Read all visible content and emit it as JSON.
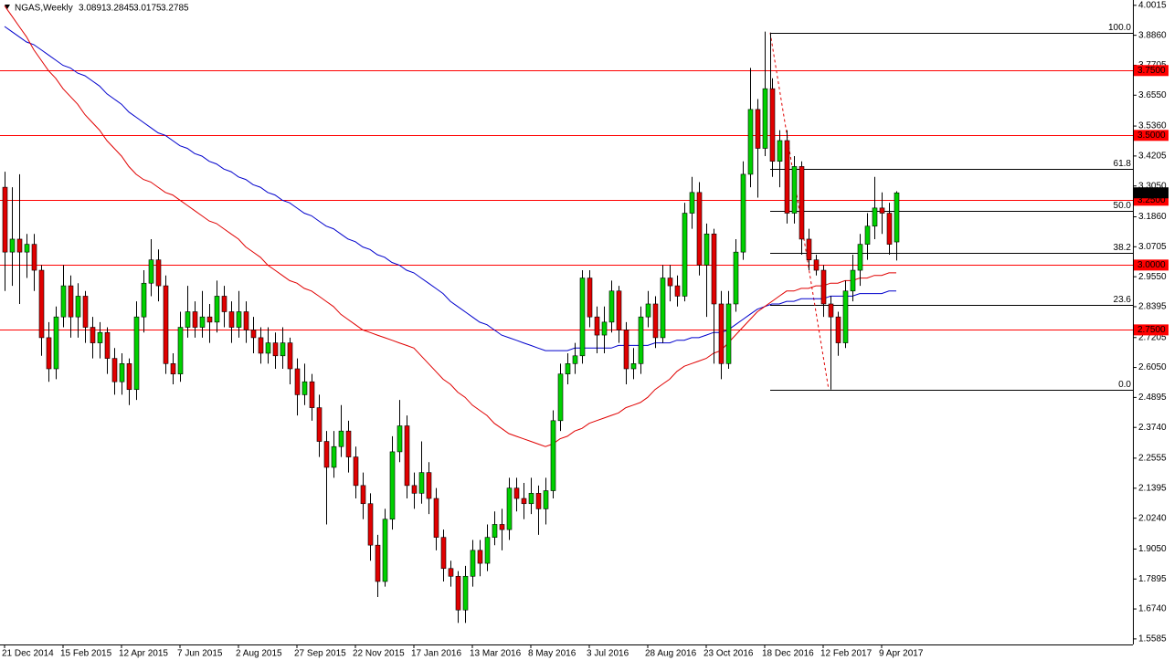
{
  "chart_data": {
    "type": "candlestick",
    "title": "NGAS,Weekly",
    "categories": [
      "21 Dec 2014",
      null,
      null,
      null,
      null,
      null,
      null,
      null,
      "15 Feb 2015",
      null,
      null,
      null,
      null,
      null,
      null,
      null,
      "12 Apr 2015",
      null,
      null,
      null,
      null,
      null,
      null,
      null,
      "7 Jun 2015",
      null,
      null,
      null,
      null,
      null,
      null,
      null,
      "2 Aug 2015",
      null,
      null,
      null,
      null,
      null,
      null,
      null,
      "27 Sep 2015",
      null,
      null,
      null,
      null,
      null,
      null,
      null,
      "22 Nov 2015",
      null,
      null,
      null,
      null,
      null,
      null,
      null,
      "17 Jan 2016",
      null,
      null,
      null,
      null,
      null,
      null,
      null,
      "13 Mar 2016",
      null,
      null,
      null,
      null,
      null,
      null,
      null,
      "8 May 2016",
      null,
      null,
      null,
      null,
      null,
      null,
      null,
      "3 Jul 2016",
      null,
      null,
      null,
      null,
      null,
      null,
      null,
      "28 Aug 2016",
      null,
      null,
      null,
      null,
      null,
      null,
      null,
      "23 Oct 2016",
      null,
      null,
      null,
      null,
      null,
      null,
      null,
      "18 Dec 2016",
      null,
      null,
      null,
      null,
      null,
      null,
      null,
      "12 Feb 2017",
      null,
      null,
      null,
      null,
      null,
      null,
      null,
      "9 Apr 2017",
      null,
      null
    ],
    "candles": [
      [
        3.3,
        3.36,
        2.9,
        3.05
      ],
      [
        3.05,
        3.3,
        2.92,
        3.1
      ],
      [
        3.1,
        3.35,
        2.85,
        3.05
      ],
      [
        3.05,
        3.12,
        2.95,
        3.08
      ],
      [
        3.08,
        3.12,
        2.9,
        2.98
      ],
      [
        2.98,
        3.0,
        2.65,
        2.72
      ],
      [
        2.72,
        2.78,
        2.55,
        2.6
      ],
      [
        2.6,
        2.84,
        2.56,
        2.8
      ],
      [
        2.8,
        3.0,
        2.76,
        2.92
      ],
      [
        2.92,
        2.96,
        2.72,
        2.8
      ],
      [
        2.8,
        2.93,
        2.72,
        2.88
      ],
      [
        2.88,
        2.9,
        2.7,
        2.76
      ],
      [
        2.76,
        2.8,
        2.64,
        2.7
      ],
      [
        2.7,
        2.78,
        2.64,
        2.74
      ],
      [
        2.74,
        2.76,
        2.58,
        2.64
      ],
      [
        2.64,
        2.68,
        2.5,
        2.55
      ],
      [
        2.55,
        2.66,
        2.5,
        2.62
      ],
      [
        2.62,
        2.64,
        2.46,
        2.52
      ],
      [
        2.52,
        2.86,
        2.48,
        2.8
      ],
      [
        2.8,
        2.98,
        2.74,
        2.93
      ],
      [
        2.93,
        3.1,
        2.88,
        3.02
      ],
      [
        3.02,
        3.06,
        2.86,
        2.92
      ],
      [
        2.92,
        2.96,
        2.58,
        2.62
      ],
      [
        2.62,
        2.66,
        2.54,
        2.58
      ],
      [
        2.58,
        2.82,
        2.55,
        2.76
      ],
      [
        2.76,
        2.92,
        2.72,
        2.82
      ],
      [
        2.82,
        2.86,
        2.72,
        2.76
      ],
      [
        2.76,
        2.9,
        2.72,
        2.8
      ],
      [
        2.8,
        2.85,
        2.7,
        2.78
      ],
      [
        2.78,
        2.94,
        2.74,
        2.88
      ],
      [
        2.88,
        2.92,
        2.76,
        2.82
      ],
      [
        2.82,
        2.86,
        2.7,
        2.76
      ],
      [
        2.76,
        2.9,
        2.72,
        2.82
      ],
      [
        2.82,
        2.86,
        2.7,
        2.75
      ],
      [
        2.75,
        2.8,
        2.66,
        2.72
      ],
      [
        2.72,
        2.76,
        2.62,
        2.66
      ],
      [
        2.66,
        2.76,
        2.62,
        2.7
      ],
      [
        2.7,
        2.74,
        2.6,
        2.65
      ],
      [
        2.65,
        2.76,
        2.6,
        2.7
      ],
      [
        2.7,
        2.72,
        2.54,
        2.6
      ],
      [
        2.6,
        2.64,
        2.42,
        2.5
      ],
      [
        2.5,
        2.62,
        2.46,
        2.55
      ],
      [
        2.55,
        2.58,
        2.4,
        2.45
      ],
      [
        2.45,
        2.5,
        2.26,
        2.32
      ],
      [
        2.32,
        2.36,
        2.0,
        2.22
      ],
      [
        2.22,
        2.36,
        2.18,
        2.3
      ],
      [
        2.3,
        2.46,
        2.26,
        2.36
      ],
      [
        2.36,
        2.4,
        2.2,
        2.26
      ],
      [
        2.26,
        2.3,
        2.1,
        2.15
      ],
      [
        2.15,
        2.2,
        2.02,
        2.08
      ],
      [
        2.08,
        2.12,
        1.86,
        1.92
      ],
      [
        1.92,
        1.96,
        1.72,
        1.78
      ],
      [
        1.78,
        2.06,
        1.76,
        2.02
      ],
      [
        2.02,
        2.34,
        1.98,
        2.28
      ],
      [
        2.28,
        2.48,
        2.24,
        2.38
      ],
      [
        2.38,
        2.42,
        2.1,
        2.15
      ],
      [
        2.15,
        2.2,
        2.06,
        2.12
      ],
      [
        2.12,
        2.32,
        2.08,
        2.2
      ],
      [
        2.2,
        2.24,
        2.04,
        2.1
      ],
      [
        2.1,
        2.14,
        1.9,
        1.95
      ],
      [
        1.95,
        1.98,
        1.78,
        1.83
      ],
      [
        1.83,
        1.86,
        1.76,
        1.8
      ],
      [
        1.8,
        1.82,
        1.62,
        1.67
      ],
      [
        1.67,
        1.84,
        1.62,
        1.8
      ],
      [
        1.8,
        1.94,
        1.76,
        1.9
      ],
      [
        1.9,
        1.94,
        1.8,
        1.85
      ],
      [
        1.85,
        2.0,
        1.82,
        1.95
      ],
      [
        1.95,
        2.05,
        1.92,
        2.0
      ],
      [
        2.0,
        2.06,
        1.9,
        1.98
      ],
      [
        1.98,
        2.18,
        1.94,
        2.14
      ],
      [
        2.14,
        2.18,
        2.05,
        2.1
      ],
      [
        2.1,
        2.16,
        2.02,
        2.08
      ],
      [
        2.08,
        2.18,
        2.04,
        2.12
      ],
      [
        2.12,
        2.15,
        1.96,
        2.06
      ],
      [
        2.06,
        2.18,
        2.0,
        2.13
      ],
      [
        2.13,
        2.44,
        2.1,
        2.4
      ],
      [
        2.4,
        2.62,
        2.36,
        2.58
      ],
      [
        2.58,
        2.66,
        2.54,
        2.62
      ],
      [
        2.62,
        2.7,
        2.58,
        2.65
      ],
      [
        2.65,
        2.98,
        2.62,
        2.95
      ],
      [
        2.95,
        2.98,
        2.76,
        2.8
      ],
      [
        2.8,
        2.84,
        2.66,
        2.73
      ],
      [
        2.73,
        2.84,
        2.66,
        2.78
      ],
      [
        2.78,
        2.94,
        2.74,
        2.9
      ],
      [
        2.9,
        2.92,
        2.7,
        2.75
      ],
      [
        2.75,
        2.78,
        2.54,
        2.6
      ],
      [
        2.6,
        2.68,
        2.56,
        2.62
      ],
      [
        2.62,
        2.84,
        2.58,
        2.8
      ],
      [
        2.8,
        2.9,
        2.76,
        2.85
      ],
      [
        2.85,
        2.88,
        2.68,
        2.72
      ],
      [
        2.72,
        3.0,
        2.7,
        2.95
      ],
      [
        2.95,
        3.0,
        2.86,
        2.92
      ],
      [
        2.92,
        2.96,
        2.84,
        2.88
      ],
      [
        2.88,
        3.24,
        2.86,
        3.2
      ],
      [
        3.2,
        3.34,
        3.14,
        3.28
      ],
      [
        3.28,
        3.32,
        2.96,
        3.0
      ],
      [
        3.0,
        3.16,
        2.8,
        3.12
      ],
      [
        3.12,
        3.14,
        2.62,
        2.85
      ],
      [
        2.85,
        2.9,
        2.56,
        2.62
      ],
      [
        2.62,
        2.9,
        2.6,
        2.85
      ],
      [
        2.85,
        3.1,
        2.82,
        3.05
      ],
      [
        3.05,
        3.4,
        3.02,
        3.35
      ],
      [
        3.35,
        3.76,
        3.3,
        3.6
      ],
      [
        3.6,
        3.64,
        3.26,
        3.45
      ],
      [
        3.45,
        3.9,
        3.42,
        3.68
      ],
      [
        3.68,
        3.72,
        3.34,
        3.4
      ],
      [
        3.4,
        3.52,
        3.3,
        3.48
      ],
      [
        3.48,
        3.52,
        3.16,
        3.2
      ],
      [
        3.2,
        3.42,
        3.16,
        3.38
      ],
      [
        3.38,
        3.4,
        3.04,
        3.1
      ],
      [
        3.1,
        3.14,
        2.98,
        3.02
      ],
      [
        3.02,
        3.04,
        2.96,
        2.98
      ],
      [
        2.98,
        3.0,
        2.8,
        2.85
      ],
      [
        2.85,
        2.88,
        2.52,
        2.8
      ],
      [
        2.8,
        2.82,
        2.65,
        2.7
      ],
      [
        2.7,
        2.94,
        2.68,
        2.9
      ],
      [
        2.9,
        3.04,
        2.86,
        2.98
      ],
      [
        2.98,
        3.12,
        2.92,
        3.08
      ],
      [
        3.08,
        3.2,
        3.02,
        3.15
      ],
      [
        3.15,
        3.34,
        3.1,
        3.22
      ],
      [
        3.22,
        3.28,
        3.12,
        3.2
      ],
      [
        3.2,
        3.24,
        3.04,
        3.08
      ],
      [
        3.0891,
        3.2845,
        3.0175,
        3.2785
      ]
    ],
    "up_color": "#00d000",
    "down_color": "#e00000",
    "series": [
      {
        "color": "#0000cc",
        "values": [
          3.92,
          3.9,
          3.88,
          3.86,
          3.85,
          3.83,
          3.81,
          3.79,
          3.77,
          3.76,
          3.74,
          3.73,
          3.71,
          3.69,
          3.66,
          3.64,
          3.62,
          3.59,
          3.57,
          3.55,
          3.53,
          3.51,
          3.5,
          3.48,
          3.46,
          3.45,
          3.43,
          3.42,
          3.4,
          3.39,
          3.37,
          3.36,
          3.34,
          3.33,
          3.31,
          3.3,
          3.28,
          3.27,
          3.25,
          3.24,
          3.22,
          3.2,
          3.19,
          3.17,
          3.15,
          3.14,
          3.12,
          3.1,
          3.09,
          3.07,
          3.06,
          3.04,
          3.03,
          3.01,
          3.0,
          2.98,
          2.97,
          2.95,
          2.93,
          2.91,
          2.89,
          2.86,
          2.84,
          2.82,
          2.8,
          2.78,
          2.77,
          2.75,
          2.73,
          2.72,
          2.71,
          2.7,
          2.69,
          2.68,
          2.67,
          2.67,
          2.67,
          2.67,
          2.68,
          2.68,
          2.68,
          2.68,
          2.68,
          2.68,
          2.69,
          2.69,
          2.69,
          2.69,
          2.69,
          2.7,
          2.7,
          2.7,
          2.71,
          2.71,
          2.72,
          2.72,
          2.73,
          2.74,
          2.74,
          2.75,
          2.77,
          2.79,
          2.81,
          2.83,
          2.84,
          2.85,
          2.85,
          2.86,
          2.86,
          2.87,
          2.87,
          2.87,
          2.87,
          2.88,
          2.88,
          2.88,
          2.88,
          2.89,
          2.89,
          2.89,
          2.89,
          2.9,
          2.9
        ]
      },
      {
        "color": "#e00000",
        "values": [
          4.0,
          3.96,
          3.92,
          3.88,
          3.83,
          3.79,
          3.75,
          3.72,
          3.68,
          3.65,
          3.62,
          3.58,
          3.55,
          3.52,
          3.48,
          3.45,
          3.42,
          3.38,
          3.35,
          3.33,
          3.32,
          3.3,
          3.28,
          3.27,
          3.25,
          3.23,
          3.21,
          3.19,
          3.17,
          3.16,
          3.14,
          3.12,
          3.1,
          3.07,
          3.05,
          3.03,
          3.0,
          2.98,
          2.96,
          2.94,
          2.93,
          2.91,
          2.9,
          2.88,
          2.86,
          2.84,
          2.81,
          2.79,
          2.77,
          2.75,
          2.74,
          2.73,
          2.72,
          2.71,
          2.7,
          2.69,
          2.68,
          2.65,
          2.62,
          2.59,
          2.56,
          2.54,
          2.51,
          2.49,
          2.46,
          2.44,
          2.42,
          2.39,
          2.37,
          2.35,
          2.34,
          2.33,
          2.32,
          2.31,
          2.3,
          2.31,
          2.33,
          2.34,
          2.36,
          2.37,
          2.39,
          2.4,
          2.41,
          2.42,
          2.43,
          2.45,
          2.46,
          2.47,
          2.49,
          2.52,
          2.54,
          2.56,
          2.59,
          2.61,
          2.62,
          2.63,
          2.64,
          2.66,
          2.67,
          2.7,
          2.73,
          2.76,
          2.79,
          2.82,
          2.84,
          2.86,
          2.88,
          2.9,
          2.9,
          2.91,
          2.91,
          2.92,
          2.92,
          2.93,
          2.93,
          2.94,
          2.94,
          2.95,
          2.95,
          2.96,
          2.96,
          2.97,
          2.97
        ]
      }
    ],
    "levels": [
      {
        "value": 3.75,
        "label": "3.7500"
      },
      {
        "value": 3.5,
        "label": "3.5000"
      },
      {
        "value": 3.25,
        "label": "3.2500"
      },
      {
        "value": 3,
        "label": "3.0000"
      },
      {
        "value": 2.75,
        "label": "2.7500"
      }
    ],
    "level_color": "#ff0000",
    "fibonacci": [
      {
        "value": 3.896,
        "label": "100.0"
      },
      {
        "value": 3.37,
        "label": "61.8"
      },
      {
        "value": 3.208,
        "label": "50.0"
      },
      {
        "value": 3.046,
        "label": "38.2"
      },
      {
        "value": 2.845,
        "label": "23.6"
      },
      {
        "value": 2.52,
        "label": "0.0"
      }
    ],
    "ylim": [
      1.537,
      4.022
    ],
    "yticks": [
      4.0015,
      {
        "value": 3.886,
        "label": "3.8860"
      },
      {
        "value": 3.7705,
        "label": "3.7705"
      },
      {
        "value": 3.655,
        "label": "3.6550"
      },
      {
        "value": 3.536,
        "label": "3.5360"
      },
      3.4205,
      {
        "value": 3.305,
        "label": "3.3050"
      },
      {
        "value": 3.186,
        "label": "3.1860"
      },
      3.0705,
      {
        "value": 2.955,
        "label": "2.9550"
      },
      2.8395,
      2.7205,
      {
        "value": 2.605,
        "label": "2.6050"
      },
      2.4895,
      {
        "value": 2.374,
        "label": "2.3740"
      },
      2.2555,
      2.1395,
      {
        "value": 2.024,
        "label": "2.0240"
      },
      {
        "value": 1.905,
        "label": "1.9050"
      },
      1.7895,
      {
        "value": 1.674,
        "label": "1.6740"
      },
      1.5585
    ]
  }
}
